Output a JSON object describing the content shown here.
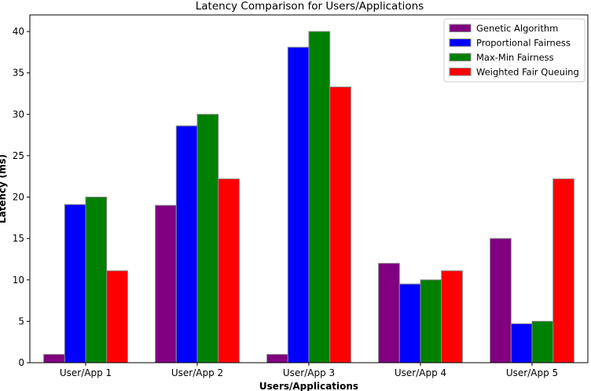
{
  "chart_data": {
    "type": "bar",
    "title": "Latency Comparison for Users/Applications",
    "xlabel": "Users/Applications",
    "ylabel": "Latency (ms)",
    "categories": [
      "User/App 1",
      "User/App 2",
      "User/App 3",
      "User/App 4",
      "User/App 5"
    ],
    "ylim": [
      0,
      42
    ],
    "yticks": [
      0,
      5,
      10,
      15,
      20,
      25,
      30,
      35,
      40
    ],
    "grid": false,
    "legend_position": "top-right",
    "series": [
      {
        "name": "Genetic Algorithm",
        "color": "#800080",
        "values": [
          1,
          19,
          1,
          12,
          15
        ]
      },
      {
        "name": "Proportional Fairness",
        "color": "#0000ff",
        "values": [
          19.1,
          28.6,
          38.1,
          9.5,
          4.7
        ]
      },
      {
        "name": "Max-Min Fairness",
        "color": "#008000",
        "values": [
          20,
          30,
          40,
          10,
          5
        ]
      },
      {
        "name": "Weighted Fair Queuing",
        "color": "#ff0000",
        "values": [
          11.1,
          22.2,
          33.3,
          11.1,
          22.2
        ]
      }
    ]
  }
}
